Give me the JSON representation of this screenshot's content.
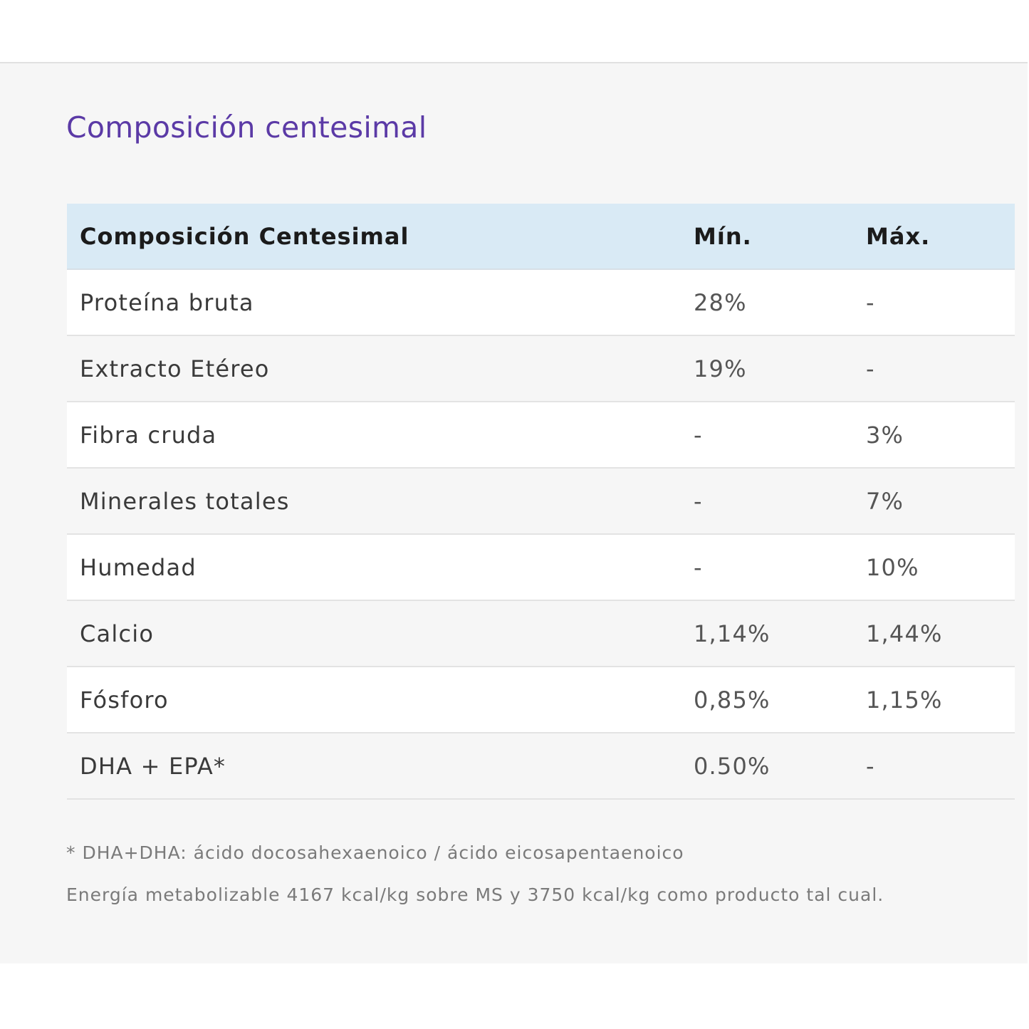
{
  "colors": {
    "title": "#5b3aa6",
    "header_bg": "#d9eaf5",
    "panel_bg": "#f6f6f6"
  },
  "section": {
    "title": "Composición centesimal"
  },
  "table": {
    "headers": [
      "Composición Centesimal",
      "Mín.",
      "Máx."
    ],
    "rows": [
      [
        "Proteína bruta",
        "28%",
        "-"
      ],
      [
        "Extracto Etéreo",
        "19%",
        "-"
      ],
      [
        "Fibra cruda",
        "-",
        "3%"
      ],
      [
        "Minerales totales",
        "-",
        "7%"
      ],
      [
        "Humedad",
        "-",
        "10%"
      ],
      [
        "Calcio",
        "1,14%",
        "1,44%"
      ],
      [
        "Fósforo",
        "0,85%",
        "1,15%"
      ],
      [
        "DHA + EPA*",
        "0.50%",
        "-"
      ]
    ]
  },
  "notes": {
    "footnote": "* DHA+DHA: ácido docosahexaenoico / ácido eicosapentaenoico",
    "energy": "Energía metabolizable 4167 kcal/kg sobre MS y 3750 kcal/kg como producto tal cual."
  }
}
